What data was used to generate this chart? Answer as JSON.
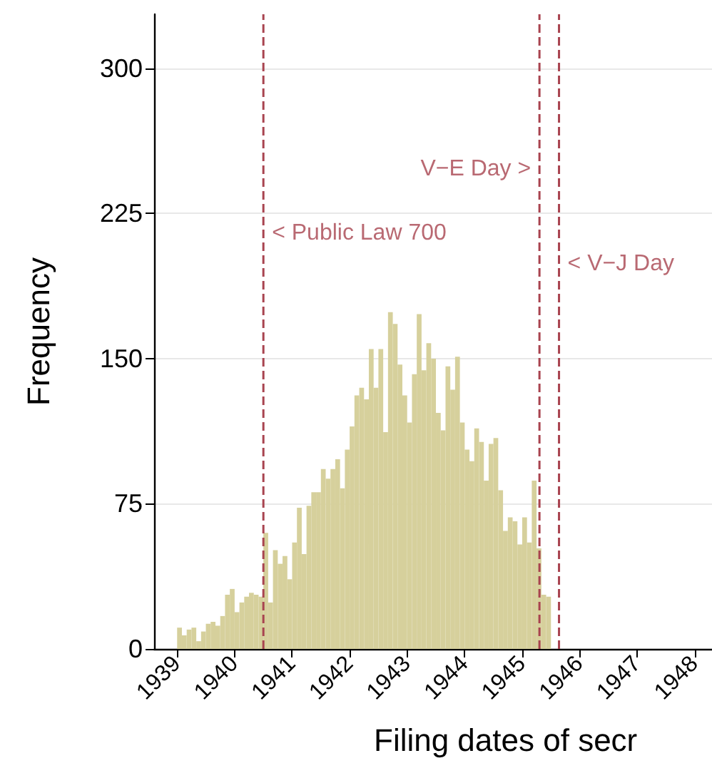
{
  "chart_data": {
    "type": "histogram",
    "xlabel": "Filing dates of secr",
    "ylabel": "Frequency",
    "bins": [
      1939,
      1939.0833,
      1939.1667,
      1939.25,
      1939.3333,
      1939.4167,
      1939.5,
      1939.5833,
      1939.6667,
      1939.75,
      1939.8333,
      1939.9167,
      1940,
      1940.0833,
      1940.1667,
      1940.25,
      1940.3333,
      1940.4167,
      1940.5,
      1940.5833,
      1940.6667,
      1940.75,
      1940.8333,
      1940.9167,
      1941,
      1941.0833,
      1941.1667,
      1941.25,
      1941.3333,
      1941.4167,
      1941.5,
      1941.5833,
      1941.6667,
      1941.75,
      1941.8333,
      1941.9167,
      1942,
      1942.0833,
      1942.1667,
      1942.25,
      1942.3333,
      1942.4167,
      1942.5,
      1942.5833,
      1942.6667,
      1942.75,
      1942.8333,
      1942.9167,
      1943,
      1943.0833,
      1943.1667,
      1943.25,
      1943.3333,
      1943.4167,
      1943.5,
      1943.5833,
      1943.6667,
      1943.75,
      1943.8333,
      1943.9167,
      1944,
      1944.0833,
      1944.1667,
      1944.25,
      1944.3333,
      1944.4167,
      1944.5,
      1944.5833,
      1944.6667,
      1944.75,
      1944.8333,
      1944.9167,
      1945,
      1945.0833,
      1945.1667,
      1945.25,
      1945.3333,
      1945.4167,
      1945.5
    ],
    "values": [
      11,
      7,
      10,
      11,
      4,
      9,
      13,
      14,
      12,
      17,
      28,
      31,
      19,
      24,
      27,
      29,
      28,
      27,
      60,
      24,
      51,
      44,
      48,
      36,
      55,
      73,
      49,
      74,
      81,
      81,
      93,
      88,
      93,
      98,
      83,
      103,
      115,
      131,
      135,
      129,
      155,
      135,
      155,
      112,
      174,
      168,
      147,
      131,
      117,
      142,
      173,
      144,
      158,
      150,
      122,
      113,
      146,
      134,
      151,
      117,
      103,
      97,
      114,
      107,
      87,
      106,
      109,
      82,
      61,
      68,
      66,
      54,
      68,
      55,
      87,
      52,
      28,
      27
    ],
    "color": "#d6d09c",
    "xlim": [
      1938.6,
      1948.3
    ],
    "xticks": [
      1939,
      1940,
      1941,
      1942,
      1943,
      1944,
      1945,
      1946,
      1947,
      1948
    ],
    "ylim": [
      0,
      328
    ],
    "yticks": [
      0,
      75,
      150,
      225,
      300
    ],
    "grid": "y",
    "ref_lines": [
      {
        "axis": "x",
        "value": 1940.5,
        "label": "< Public Law 700",
        "color": "#a8434f",
        "line_style": "dashed"
      },
      {
        "axis": "x",
        "value": 1945.3,
        "label": "V−E Day >",
        "color": "#a8434f",
        "line_style": "dashed"
      },
      {
        "axis": "x",
        "value": 1945.64,
        "label": "< V−J Day",
        "color": "#a8434f",
        "line_style": "dashed"
      }
    ]
  }
}
